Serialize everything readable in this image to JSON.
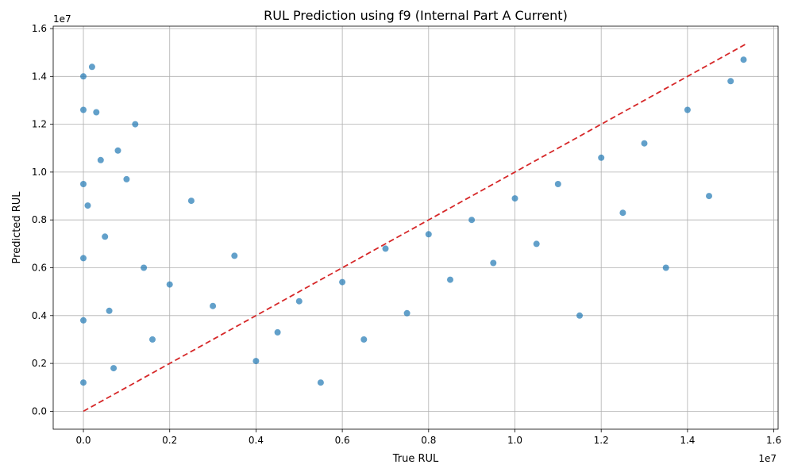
{
  "chart_data": {
    "type": "scatter",
    "title": "RUL Prediction using f9 (Internal Part A Current)",
    "xlabel": "True RUL",
    "ylabel": "Predicted RUL",
    "x_scale_label": "1e7",
    "y_scale_label": "1e7",
    "xlim": [
      -0.07,
      1.61
    ],
    "ylim": [
      -0.075,
      1.61
    ],
    "x_ticks": [
      0.0,
      0.2,
      0.4,
      0.6,
      0.8,
      1.0,
      1.2,
      1.4,
      1.6
    ],
    "x_tick_labels": [
      "0.0",
      "0.2",
      "0.4",
      "0.6",
      "0.8",
      "1.0",
      "1.2",
      "1.4",
      "1.6"
    ],
    "y_ticks": [
      0.0,
      0.2,
      0.4,
      0.6,
      0.8,
      1.0,
      1.2,
      1.4,
      1.6
    ],
    "y_tick_labels": [
      "0.0",
      "0.2",
      "0.4",
      "0.6",
      "0.8",
      "1.0",
      "1.2",
      "1.4",
      "1.6"
    ],
    "grid": true,
    "point_color": "#1f77b4",
    "reference_line": {
      "style": "dashed",
      "color": "#d62728",
      "x": [
        0.0,
        1.535
      ],
      "y": [
        0.0,
        1.535
      ]
    },
    "series": [
      {
        "points": [
          [
            0.0,
            1.4
          ],
          [
            0.0,
            1.26
          ],
          [
            0.0,
            0.95
          ],
          [
            0.0,
            0.64
          ],
          [
            0.0,
            0.38
          ],
          [
            0.0,
            0.12
          ],
          [
            0.01,
            0.86
          ],
          [
            0.02,
            1.44
          ],
          [
            0.03,
            1.25
          ],
          [
            0.04,
            1.05
          ],
          [
            0.05,
            0.73
          ],
          [
            0.06,
            0.42
          ],
          [
            0.07,
            0.18
          ],
          [
            0.08,
            1.09
          ],
          [
            0.1,
            0.97
          ],
          [
            0.12,
            1.2
          ],
          [
            0.14,
            0.6
          ],
          [
            0.16,
            0.3
          ],
          [
            0.2,
            0.53
          ],
          [
            0.25,
            0.88
          ],
          [
            0.3,
            0.44
          ],
          [
            0.35,
            0.65
          ],
          [
            0.4,
            0.21
          ],
          [
            0.45,
            0.33
          ],
          [
            0.5,
            0.46
          ],
          [
            0.55,
            0.12
          ],
          [
            0.6,
            0.54
          ],
          [
            0.65,
            0.3
          ],
          [
            0.7,
            0.68
          ],
          [
            0.75,
            0.41
          ],
          [
            0.8,
            0.74
          ],
          [
            0.85,
            0.55
          ],
          [
            0.9,
            0.8
          ],
          [
            0.95,
            0.62
          ],
          [
            1.0,
            0.89
          ],
          [
            1.05,
            0.7
          ],
          [
            1.1,
            0.95
          ],
          [
            1.15,
            0.4
          ],
          [
            1.2,
            1.06
          ],
          [
            1.25,
            0.83
          ],
          [
            1.3,
            1.12
          ],
          [
            1.35,
            0.6
          ],
          [
            1.4,
            1.26
          ],
          [
            1.45,
            0.9
          ],
          [
            1.5,
            1.38
          ],
          [
            1.53,
            1.47
          ]
        ]
      }
    ]
  }
}
